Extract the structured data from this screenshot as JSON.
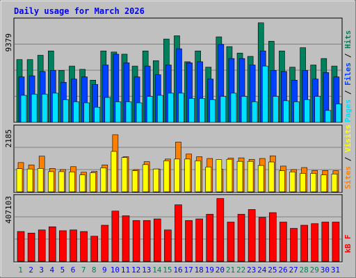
{
  "title": "Daily usage for March 2026",
  "colors": {
    "background": "#c0c0c0",
    "plot_background": "#c0c0c0",
    "title": "#0000ff",
    "hits": "#00805c",
    "files": "#0040ff",
    "pages": "#00e0ff",
    "visits": "#ffff00",
    "sites": "#ff8000",
    "kbytes": "#ff0000",
    "weekend_day": "#00805c",
    "weekday": "#0000ff"
  },
  "panels": {
    "top": {
      "max_label": "9379",
      "legend": [
        {
          "text": "Pages",
          "color": "#00e0ff"
        },
        {
          "text": " / ",
          "color": "#000000"
        },
        {
          "text": "Files",
          "color": "#0040ff"
        },
        {
          "text": " / ",
          "color": "#000000"
        },
        {
          "text": "Hits",
          "color": "#00805c"
        }
      ]
    },
    "middle": {
      "max_label": "2185",
      "legend": [
        {
          "text": "Sites",
          "color": "#ff8000"
        },
        {
          "text": " / ",
          "color": "#000000"
        },
        {
          "text": "Visits",
          "color": "#ffff00"
        }
      ]
    },
    "bottom": {
      "max_label": "407103",
      "legend": [
        {
          "text": "kB F",
          "color": "#ff0000"
        }
      ]
    }
  },
  "chart_data": {
    "type": "bar",
    "title": "Daily usage for March 2026",
    "categories": [
      "1",
      "2",
      "3",
      "4",
      "5",
      "6",
      "7",
      "8",
      "9",
      "10",
      "11",
      "12",
      "13",
      "14",
      "15",
      "16",
      "17",
      "18",
      "19",
      "20",
      "21",
      "22",
      "23",
      "24",
      "25",
      "26",
      "27",
      "28",
      "29",
      "30",
      "31"
    ],
    "weekend_days": [
      "1",
      "7",
      "8",
      "14",
      "15",
      "21",
      "22",
      "28",
      "29"
    ],
    "panels": [
      {
        "name": "top",
        "ymax": 9379,
        "series": [
          {
            "name": "Hits",
            "values": [
              5800,
              5800,
              6200,
              6600,
              4800,
              5200,
              4900,
              3900,
              6600,
              6500,
              6300,
              5200,
              6600,
              5700,
              7700,
              8000,
              5600,
              6600,
              5100,
              7900,
              7000,
              6400,
              6100,
              9200,
              7500,
              6600,
              5100,
              6900,
              5300,
              5900,
              5200
            ]
          },
          {
            "name": "Files",
            "values": [
              4200,
              4300,
              4700,
              4800,
              3700,
              4000,
              4200,
              3500,
              5300,
              6300,
              5500,
              4200,
              5200,
              4400,
              5300,
              6800,
              5500,
              5600,
              4000,
              7200,
              5900,
              5900,
              5300,
              6600,
              4800,
              4700,
              3900,
              4800,
              4000,
              4600,
              4200
            ]
          },
          {
            "name": "Pages",
            "values": [
              2500,
              2600,
              2600,
              2700,
              2100,
              1900,
              1800,
              1400,
              2300,
              1900,
              1900,
              1800,
              2400,
              2500,
              2700,
              2700,
              2200,
              2200,
              2100,
              2400,
              2700,
              2400,
              1900,
              5200,
              2400,
              2000,
              1900,
              2100,
              2400,
              1100,
              1700
            ]
          }
        ]
      },
      {
        "name": "middle",
        "ymax": 2185,
        "series": [
          {
            "name": "Sites",
            "values": [
              1000,
              920,
              1220,
              800,
              760,
              860,
              670,
              700,
              920,
              1950,
              1200,
              760,
              1030,
              780,
              1120,
              1700,
              1290,
              1200,
              1140,
              770,
              1150,
              1160,
              1110,
              1140,
              1230,
              880,
              760,
              830,
              730,
              730,
              720
            ]
          },
          {
            "name": "Visits",
            "values": [
              790,
              780,
              800,
              690,
              690,
              680,
              580,
              650,
              820,
              1380,
              1170,
              720,
              930,
              780,
              1060,
              1120,
              1120,
              1060,
              850,
              1100,
              1110,
              1040,
              1040,
              900,
              1020,
              720,
              680,
              630,
              630,
              580,
              610
            ]
          }
        ]
      },
      {
        "name": "bottom",
        "ymax": 407103,
        "series": [
          {
            "name": "kB F",
            "values": [
              190000,
              180000,
              200000,
              220000,
              195000,
              200000,
              190000,
              160000,
              230000,
              320000,
              290000,
              260000,
              260000,
              270000,
              200000,
              360000,
              260000,
              270000,
              300000,
              400000,
              250000,
              300000,
              330000,
              280000,
              310000,
              250000,
              210000,
              230000,
              240000,
              250000,
              250000
            ]
          }
        ]
      }
    ]
  }
}
